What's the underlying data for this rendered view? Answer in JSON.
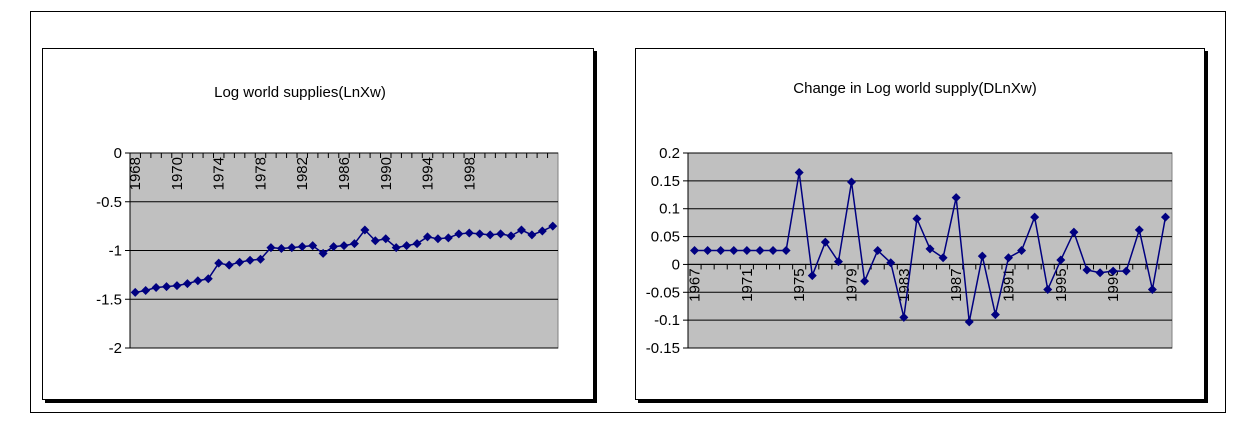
{
  "chart_data": [
    {
      "type": "line",
      "title": "Log world supplies(LnXw)",
      "categories": [
        "1968",
        null,
        null,
        null,
        "1970",
        null,
        null,
        null,
        "1974",
        null,
        null,
        null,
        "1978",
        null,
        null,
        null,
        "1982",
        null,
        null,
        null,
        "1986",
        null,
        null,
        null,
        "1990",
        null,
        null,
        null,
        "1994",
        null,
        null,
        null,
        "1998",
        null,
        null,
        null,
        null,
        null,
        null,
        null,
        null
      ],
      "values": [
        -1.43,
        -1.41,
        -1.38,
        -1.37,
        -1.36,
        -1.34,
        -1.31,
        -1.29,
        -1.13,
        -1.15,
        -1.12,
        -1.1,
        -1.09,
        -0.97,
        -0.98,
        -0.97,
        -0.96,
        -0.95,
        -1.03,
        -0.96,
        -0.95,
        -0.93,
        -0.79,
        -0.9,
        -0.88,
        -0.97,
        -0.95,
        -0.93,
        -0.86,
        -0.88,
        -0.87,
        -0.83,
        -0.82,
        -0.83,
        -0.84,
        -0.83,
        -0.85,
        -0.79,
        -0.84,
        -0.8,
        -0.75
      ],
      "color": "#000080",
      "ylim": [
        -2,
        0
      ],
      "yticks": [
        0,
        -0.5,
        -1,
        -1.5,
        -2
      ],
      "grid": true
    },
    {
      "type": "line",
      "title": "Change in Log world supply(DLnXw)",
      "categories": [
        "1967",
        null,
        null,
        null,
        "1971",
        null,
        null,
        null,
        "1975",
        null,
        null,
        null,
        "1979",
        null,
        null,
        null,
        "1983",
        null,
        null,
        null,
        "1987",
        null,
        null,
        null,
        "1991",
        null,
        null,
        null,
        "1995",
        null,
        null,
        null,
        "1999",
        null,
        null,
        null,
        null
      ],
      "values": [
        0.025,
        0.025,
        0.025,
        0.025,
        0.025,
        0.025,
        0.025,
        0.025,
        0.165,
        -0.02,
        0.04,
        0.005,
        0.148,
        -0.03,
        0.025,
        0.003,
        -0.095,
        0.082,
        0.028,
        0.012,
        0.12,
        -0.103,
        0.015,
        -0.09,
        0.012,
        0.025,
        0.085,
        -0.045,
        0.008,
        0.058,
        -0.01,
        -0.015,
        -0.012,
        -0.012,
        0.062,
        -0.045,
        0.085
      ],
      "color": "#000080",
      "ylim": [
        -0.15,
        0.2
      ],
      "yticks": [
        0.2,
        0.15,
        0.1,
        0.05,
        0,
        -0.05,
        -0.1,
        -0.15
      ],
      "grid": true
    }
  ]
}
